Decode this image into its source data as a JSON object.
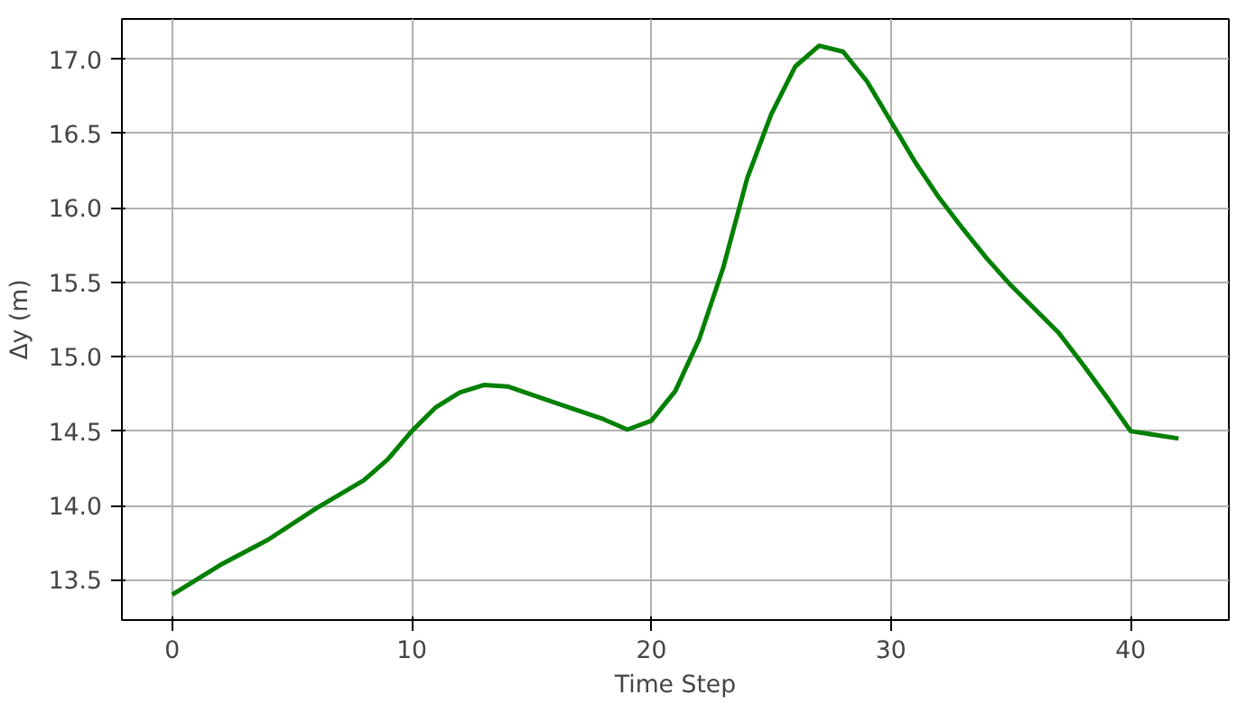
{
  "chart_data": {
    "type": "line",
    "xlabel": "Time Step",
    "ylabel": "Δy (m)",
    "x": [
      0,
      2,
      4,
      6,
      8,
      9,
      10,
      11,
      12,
      13,
      14,
      16,
      18,
      19,
      20,
      21,
      22,
      23,
      24,
      25,
      26,
      27,
      28,
      29,
      30,
      31,
      32,
      33,
      34,
      35,
      37,
      38,
      39,
      40,
      42
    ],
    "series": [
      {
        "color": "#008000",
        "values": [
          13.4,
          13.6,
          13.77,
          13.98,
          14.17,
          14.31,
          14.5,
          14.66,
          14.76,
          14.81,
          14.8,
          14.69,
          14.58,
          14.51,
          14.57,
          14.77,
          15.12,
          15.6,
          16.2,
          16.63,
          16.95,
          17.09,
          17.05,
          16.85,
          16.58,
          16.31,
          16.07,
          15.86,
          15.66,
          15.48,
          15.16,
          14.95,
          14.73,
          14.5,
          14.45
        ]
      }
    ],
    "xlim": [
      -2.1,
      44.1
    ],
    "ylim": [
      13.23,
      17.27
    ],
    "xticks": [
      0,
      10,
      20,
      30,
      40
    ],
    "yticks": [
      13.5,
      {
        "value": 14,
        "label": "14.0"
      },
      14.5,
      {
        "value": 15,
        "label": "15.0"
      },
      15.5,
      {
        "value": 16,
        "label": "16.0"
      },
      16.5,
      {
        "value": 17,
        "label": "17.0"
      }
    ],
    "grid": true,
    "marker": "none",
    "line_style": "solid"
  }
}
